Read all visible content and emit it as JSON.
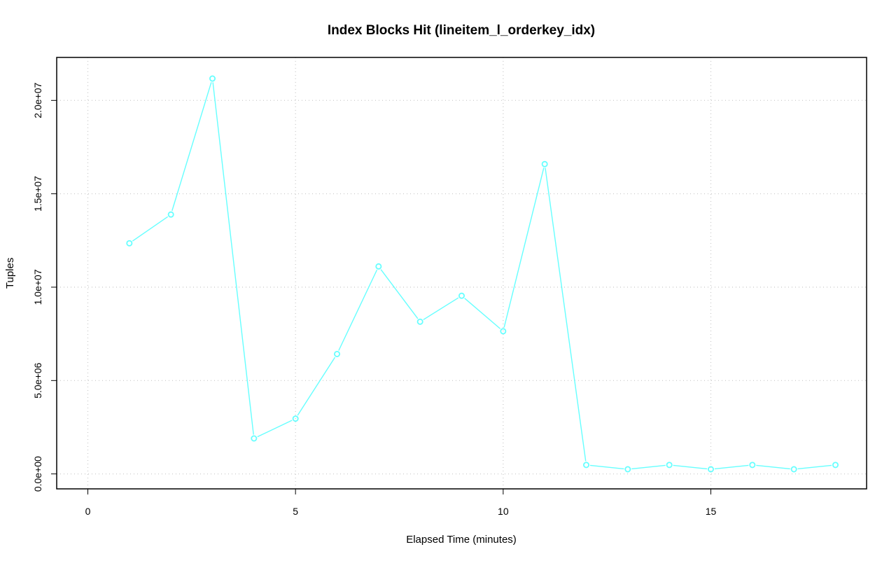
{
  "chart_data": {
    "type": "line",
    "title": "Index Blocks Hit (lineitem_l_orderkey_idx)",
    "xlabel": "Elapsed Time (minutes)",
    "ylabel": "Tuples",
    "xlim": [
      -0.75,
      18.75
    ],
    "ylim": [
      -800000,
      22300000
    ],
    "x_ticks": [
      0,
      5,
      10,
      15
    ],
    "x_tick_labels": [
      "0",
      "5",
      "10",
      "15"
    ],
    "y_ticks": [
      0,
      5000000,
      10000000,
      15000000,
      20000000
    ],
    "y_tick_labels": [
      "0.0e+00",
      "5.0e+06",
      "1.0e+07",
      "1.5e+07",
      "2.0e+07"
    ],
    "grid": true,
    "series": [
      {
        "color": "#66ffff",
        "marker": "open-circle",
        "x": [
          1,
          2,
          3,
          4,
          5,
          6,
          7,
          8,
          9,
          10,
          11,
          12,
          13,
          14,
          15,
          16,
          17,
          18
        ],
        "y": [
          12350000,
          13890000,
          21170000,
          1900000,
          2960000,
          6420000,
          11110000,
          8150000,
          9540000,
          7640000,
          16590000,
          480000,
          250000,
          480000,
          250000,
          480000,
          250000,
          480000
        ]
      }
    ]
  }
}
